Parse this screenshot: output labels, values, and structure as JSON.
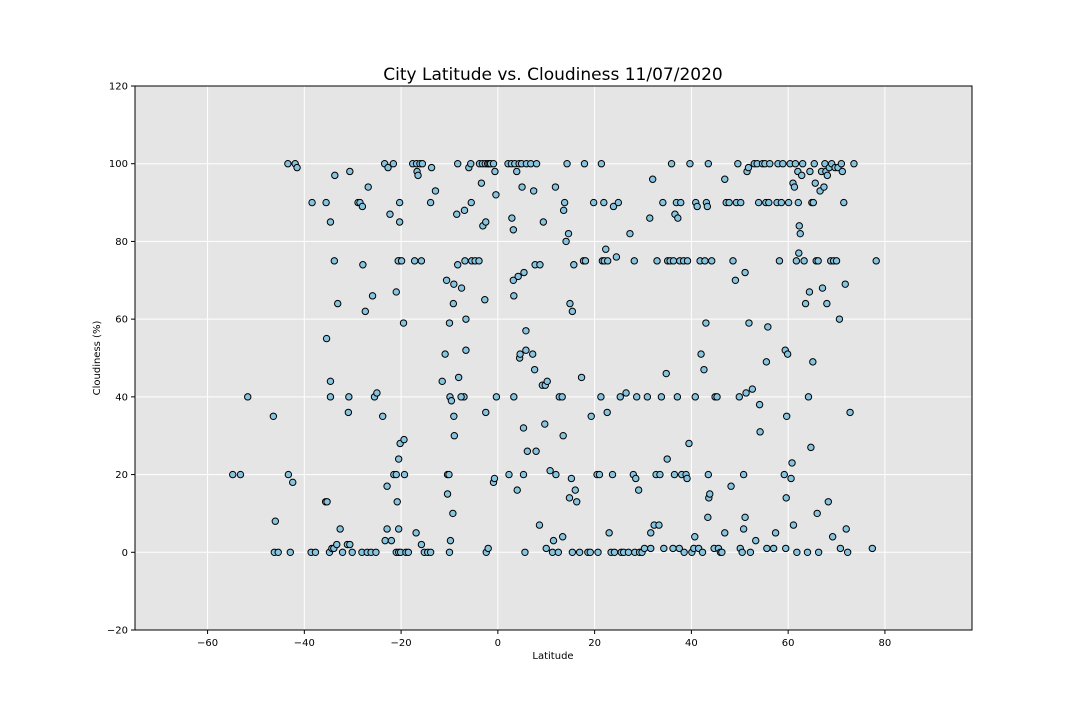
{
  "chart_data": {
    "type": "scatter",
    "title": "City Latitude vs. Cloudiness 11/07/2020",
    "xlabel": "Latitude",
    "ylabel": "Cloudiness (%)",
    "xlim": [
      -75,
      98
    ],
    "ylim": [
      -20,
      120
    ],
    "xticks": [
      -60,
      -40,
      -20,
      0,
      20,
      40,
      60,
      80
    ],
    "yticks": [
      -20,
      0,
      20,
      40,
      60,
      80,
      100,
      120
    ],
    "grid": true,
    "colors": {
      "marker_fill": "#87c4e0",
      "marker_edge": "#000000",
      "plot_background": "#e5e5e5",
      "grid": "#ffffff"
    },
    "points": [
      [
        -54.8,
        20
      ],
      [
        -53.2,
        20
      ],
      [
        -51.7,
        40
      ],
      [
        -46.4,
        35
      ],
      [
        -46.0,
        8
      ],
      [
        -46.2,
        0
      ],
      [
        -45.4,
        0
      ],
      [
        -43.4,
        100
      ],
      [
        -41.9,
        100
      ],
      [
        -41.5,
        99
      ],
      [
        -43.3,
        20
      ],
      [
        -42.4,
        18
      ],
      [
        -42.9,
        0
      ],
      [
        -38.4,
        90
      ],
      [
        -38.6,
        0
      ],
      [
        -37.7,
        0
      ],
      [
        -35.5,
        90
      ],
      [
        -34.6,
        85
      ],
      [
        -33.8,
        75
      ],
      [
        -33.7,
        97
      ],
      [
        -33.1,
        64
      ],
      [
        -35.4,
        55
      ],
      [
        -34.6,
        44
      ],
      [
        -34.6,
        40
      ],
      [
        -35.6,
        13
      ],
      [
        -35.3,
        13
      ],
      [
        -34.8,
        0
      ],
      [
        -34.3,
        1
      ],
      [
        -33.9,
        1
      ],
      [
        -33.3,
        2
      ],
      [
        -32.6,
        6
      ],
      [
        -32.1,
        0
      ],
      [
        -30.6,
        98
      ],
      [
        -30.8,
        40
      ],
      [
        -30.9,
        36
      ],
      [
        -31.1,
        2
      ],
      [
        -30.6,
        2
      ],
      [
        -30.1,
        0
      ],
      [
        -28.9,
        90
      ],
      [
        -28.5,
        90
      ],
      [
        -28.0,
        89
      ],
      [
        -27.9,
        74
      ],
      [
        -27.4,
        62
      ],
      [
        -26.8,
        94
      ],
      [
        -25.9,
        66
      ],
      [
        -25.5,
        40
      ],
      [
        -25.0,
        41
      ],
      [
        -28.1,
        0
      ],
      [
        -27.0,
        0
      ],
      [
        -26.2,
        0
      ],
      [
        -25.2,
        0
      ],
      [
        -23.4,
        100
      ],
      [
        -22.7,
        99
      ],
      [
        -21.6,
        100
      ],
      [
        -22.3,
        87
      ],
      [
        -21.0,
        67
      ],
      [
        -23.8,
        35
      ],
      [
        -22.9,
        17
      ],
      [
        -23.3,
        3
      ],
      [
        -22.0,
        3
      ],
      [
        -22.9,
        6
      ],
      [
        -21.5,
        20
      ],
      [
        -21.0,
        20
      ],
      [
        -21.0,
        0
      ],
      [
        -20.5,
        0
      ],
      [
        -20.1,
        0
      ],
      [
        -20.3,
        85
      ],
      [
        -20.3,
        90
      ],
      [
        -20.3,
        75
      ],
      [
        -20.6,
        75
      ],
      [
        -19.9,
        75
      ],
      [
        -19.5,
        59
      ],
      [
        -20.2,
        28
      ],
      [
        -19.4,
        29
      ],
      [
        -20.5,
        24
      ],
      [
        -20.8,
        13
      ],
      [
        -20.5,
        6
      ],
      [
        -19.3,
        20
      ],
      [
        -19.0,
        0
      ],
      [
        -18.5,
        0
      ],
      [
        -17.6,
        100
      ],
      [
        -16.8,
        100
      ],
      [
        -16.1,
        100
      ],
      [
        -15.6,
        100
      ],
      [
        -16.7,
        98
      ],
      [
        -16.5,
        97
      ],
      [
        -17.2,
        75
      ],
      [
        -15.8,
        75
      ],
      [
        -16.9,
        5
      ],
      [
        -15.8,
        2
      ],
      [
        -15.2,
        0
      ],
      [
        -14.5,
        0
      ],
      [
        -13.9,
        0
      ],
      [
        -13.9,
        90
      ],
      [
        -13.7,
        99
      ],
      [
        -12.9,
        93
      ],
      [
        -11.5,
        44
      ],
      [
        -10.6,
        70
      ],
      [
        -10.4,
        20
      ],
      [
        -10.1,
        20
      ],
      [
        -10.0,
        59
      ],
      [
        -10.9,
        51
      ],
      [
        -9.9,
        40
      ],
      [
        -9.6,
        39
      ],
      [
        -10.4,
        15
      ],
      [
        -9.8,
        3
      ],
      [
        -9.3,
        10
      ],
      [
        -10.0,
        0
      ],
      [
        -9.2,
        64
      ],
      [
        -9.1,
        69
      ],
      [
        -9.1,
        35
      ],
      [
        -9.0,
        30
      ],
      [
        -8.3,
        100
      ],
      [
        -8.5,
        87
      ],
      [
        -8.3,
        74
      ],
      [
        -8.1,
        45
      ],
      [
        -7.5,
        68
      ],
      [
        -7.0,
        40
      ],
      [
        -7.6,
        40
      ],
      [
        -6.9,
        88
      ],
      [
        -6.8,
        75
      ],
      [
        -6.6,
        60
      ],
      [
        -6.6,
        52
      ],
      [
        -6.0,
        99
      ],
      [
        -5.6,
        100
      ],
      [
        -5.5,
        90
      ],
      [
        -5.4,
        75
      ],
      [
        -4.7,
        75
      ],
      [
        -3.9,
        75
      ],
      [
        -3.8,
        100
      ],
      [
        -3.2,
        100
      ],
      [
        -2.6,
        100
      ],
      [
        -2.1,
        100
      ],
      [
        -1.8,
        100
      ],
      [
        -1.5,
        100
      ],
      [
        -3.4,
        95
      ],
      [
        -3.1,
        84
      ],
      [
        -2.5,
        85
      ],
      [
        -2.7,
        65
      ],
      [
        -2.5,
        36
      ],
      [
        -2.4,
        0
      ],
      [
        -2.0,
        1
      ],
      [
        -0.9,
        100
      ],
      [
        -0.6,
        98
      ],
      [
        -0.4,
        92
      ],
      [
        -0.9,
        18
      ],
      [
        -0.7,
        19
      ],
      [
        -0.3,
        40
      ],
      [
        2.1,
        100
      ],
      [
        2.8,
        100
      ],
      [
        3.5,
        100
      ],
      [
        4.4,
        100
      ],
      [
        4.9,
        100
      ],
      [
        5.9,
        100
      ],
      [
        6.8,
        100
      ],
      [
        8.0,
        100
      ],
      [
        2.9,
        86
      ],
      [
        3.2,
        83
      ],
      [
        3.9,
        98
      ],
      [
        3.2,
        70
      ],
      [
        4.2,
        71
      ],
      [
        5.4,
        72
      ],
      [
        2.3,
        20
      ],
      [
        3.3,
        66
      ],
      [
        3.3,
        40
      ],
      [
        4.0,
        16
      ],
      [
        4.5,
        50
      ],
      [
        4.6,
        51
      ],
      [
        5.0,
        94
      ],
      [
        5.3,
        32
      ],
      [
        5.8,
        52
      ],
      [
        5.8,
        57
      ],
      [
        6.1,
        26
      ],
      [
        5.3,
        20
      ],
      [
        5.6,
        0
      ],
      [
        7.4,
        93
      ],
      [
        7.7,
        74
      ],
      [
        7.2,
        51
      ],
      [
        7.6,
        47
      ],
      [
        7.9,
        26
      ],
      [
        8.6,
        7
      ],
      [
        8.7,
        74
      ],
      [
        9.2,
        43
      ],
      [
        9.8,
        43
      ],
      [
        9.4,
        85
      ],
      [
        9.7,
        33
      ],
      [
        10.2,
        44
      ],
      [
        10.0,
        1
      ],
      [
        10.8,
        21
      ],
      [
        11.3,
        0
      ],
      [
        12.0,
        20
      ],
      [
        11.5,
        3
      ],
      [
        11.9,
        94
      ],
      [
        12.5,
        0
      ],
      [
        12.7,
        40
      ],
      [
        13.3,
        40
      ],
      [
        13.4,
        4
      ],
      [
        13.5,
        30
      ],
      [
        13.6,
        88
      ],
      [
        13.8,
        90
      ],
      [
        14.1,
        80
      ],
      [
        14.3,
        100
      ],
      [
        14.6,
        82
      ],
      [
        14.8,
        14
      ],
      [
        14.9,
        64
      ],
      [
        15.2,
        19
      ],
      [
        15.4,
        0
      ],
      [
        15.4,
        62
      ],
      [
        15.7,
        74
      ],
      [
        16.0,
        16
      ],
      [
        16.3,
        13
      ],
      [
        16.9,
        0
      ],
      [
        17.3,
        45
      ],
      [
        17.7,
        75
      ],
      [
        17.9,
        100
      ],
      [
        18.1,
        75
      ],
      [
        18.6,
        0
      ],
      [
        19.1,
        0
      ],
      [
        19.3,
        35
      ],
      [
        19.8,
        90
      ],
      [
        20.5,
        20
      ],
      [
        20.7,
        0
      ],
      [
        21.0,
        20
      ],
      [
        21.3,
        40
      ],
      [
        21.4,
        100
      ],
      [
        21.6,
        75
      ],
      [
        21.9,
        90
      ],
      [
        22.0,
        75
      ],
      [
        22.3,
        78
      ],
      [
        22.6,
        36
      ],
      [
        22.7,
        75
      ],
      [
        23.0,
        5
      ],
      [
        23.4,
        0
      ],
      [
        23.7,
        20
      ],
      [
        23.9,
        89
      ],
      [
        24.1,
        0
      ],
      [
        24.5,
        76
      ],
      [
        24.9,
        90
      ],
      [
        25.3,
        40
      ],
      [
        25.5,
        0
      ],
      [
        26.5,
        41
      ],
      [
        26.0,
        0
      ],
      [
        27.0,
        0
      ],
      [
        27.3,
        82
      ],
      [
        28.0,
        20
      ],
      [
        28.5,
        19
      ],
      [
        28.2,
        75
      ],
      [
        28.7,
        40
      ],
      [
        29.1,
        16
      ],
      [
        28.3,
        0
      ],
      [
        29.3,
        0
      ],
      [
        29.8,
        0
      ],
      [
        30.3,
        1
      ],
      [
        30.9,
        40
      ],
      [
        31.4,
        86
      ],
      [
        31.6,
        5
      ],
      [
        31.6,
        1
      ],
      [
        32.0,
        96
      ],
      [
        32.3,
        7
      ],
      [
        32.7,
        20
      ],
      [
        32.9,
        75
      ],
      [
        33.3,
        7
      ],
      [
        33.5,
        20
      ],
      [
        33.8,
        40
      ],
      [
        34.1,
        90
      ],
      [
        34.3,
        1
      ],
      [
        34.8,
        46
      ],
      [
        35.0,
        24
      ],
      [
        35.1,
        75
      ],
      [
        35.6,
        75
      ],
      [
        35.9,
        100
      ],
      [
        36.2,
        1
      ],
      [
        36.3,
        75
      ],
      [
        36.5,
        20
      ],
      [
        36.6,
        87
      ],
      [
        36.9,
        90
      ],
      [
        37.1,
        40
      ],
      [
        37.2,
        86
      ],
      [
        37.5,
        1
      ],
      [
        37.6,
        75
      ],
      [
        37.8,
        90
      ],
      [
        38.0,
        20
      ],
      [
        38.4,
        75
      ],
      [
        38.5,
        0
      ],
      [
        38.9,
        20
      ],
      [
        39.1,
        19
      ],
      [
        39.2,
        75
      ],
      [
        39.5,
        28
      ],
      [
        39.7,
        100
      ],
      [
        40.1,
        0
      ],
      [
        40.5,
        1
      ],
      [
        40.7,
        4
      ],
      [
        40.8,
        40
      ],
      [
        40.9,
        90
      ],
      [
        41.2,
        89
      ],
      [
        41.5,
        1
      ],
      [
        41.8,
        75
      ],
      [
        42.0,
        51
      ],
      [
        42.3,
        0
      ],
      [
        42.6,
        47
      ],
      [
        42.8,
        75
      ],
      [
        43.0,
        59
      ],
      [
        43.1,
        90
      ],
      [
        43.3,
        89
      ],
      [
        43.4,
        9
      ],
      [
        43.5,
        20
      ],
      [
        43.5,
        100
      ],
      [
        43.6,
        14
      ],
      [
        43.8,
        15
      ],
      [
        44.2,
        75
      ],
      [
        44.7,
        1
      ],
      [
        44.9,
        40
      ],
      [
        45.3,
        40
      ],
      [
        45.6,
        1
      ],
      [
        46.0,
        0
      ],
      [
        46.3,
        0
      ],
      [
        46.9,
        5
      ],
      [
        46.9,
        96
      ],
      [
        47.2,
        90
      ],
      [
        47.8,
        90
      ],
      [
        48.2,
        17
      ],
      [
        48.6,
        75
      ],
      [
        49.1,
        70
      ],
      [
        49.3,
        90
      ],
      [
        49.6,
        100
      ],
      [
        49.9,
        40
      ],
      [
        50.1,
        1
      ],
      [
        50.2,
        90
      ],
      [
        50.5,
        0
      ],
      [
        50.8,
        20
      ],
      [
        50.8,
        6
      ],
      [
        51.1,
        9
      ],
      [
        51.1,
        72
      ],
      [
        51.3,
        41
      ],
      [
        51.5,
        98
      ],
      [
        51.8,
        99
      ],
      [
        51.9,
        59
      ],
      [
        52.2,
        0
      ],
      [
        52.6,
        42
      ],
      [
        53.0,
        100
      ],
      [
        53.3,
        3
      ],
      [
        53.6,
        100
      ],
      [
        53.9,
        90
      ],
      [
        54.1,
        38
      ],
      [
        54.2,
        31
      ],
      [
        54.7,
        100
      ],
      [
        55.2,
        100
      ],
      [
        55.4,
        90
      ],
      [
        55.5,
        49
      ],
      [
        55.6,
        1
      ],
      [
        55.8,
        58
      ],
      [
        56.0,
        90
      ],
      [
        56.2,
        100
      ],
      [
        57.0,
        1
      ],
      [
        57.4,
        5
      ],
      [
        57.7,
        90
      ],
      [
        57.9,
        100
      ],
      [
        58.2,
        75
      ],
      [
        58.6,
        90
      ],
      [
        58.9,
        100
      ],
      [
        59.2,
        20
      ],
      [
        59.4,
        52
      ],
      [
        59.5,
        1
      ],
      [
        59.6,
        14
      ],
      [
        59.7,
        35
      ],
      [
        59.9,
        51
      ],
      [
        60.1,
        90
      ],
      [
        60.4,
        100
      ],
      [
        60.6,
        19
      ],
      [
        60.8,
        23
      ],
      [
        61.0,
        95
      ],
      [
        61.1,
        7
      ],
      [
        61.3,
        94
      ],
      [
        61.5,
        100
      ],
      [
        61.7,
        75
      ],
      [
        61.8,
        0
      ],
      [
        62.0,
        98
      ],
      [
        62.1,
        90
      ],
      [
        62.2,
        77
      ],
      [
        62.3,
        84
      ],
      [
        62.5,
        82
      ],
      [
        62.8,
        97
      ],
      [
        63.0,
        100
      ],
      [
        63.3,
        75
      ],
      [
        63.6,
        64
      ],
      [
        64.0,
        0
      ],
      [
        64.2,
        40
      ],
      [
        64.4,
        67
      ],
      [
        64.5,
        98
      ],
      [
        64.7,
        27
      ],
      [
        64.9,
        90
      ],
      [
        65.1,
        49
      ],
      [
        65.2,
        90
      ],
      [
        65.4,
        100
      ],
      [
        65.6,
        95
      ],
      [
        65.8,
        75
      ],
      [
        66.0,
        10
      ],
      [
        66.2,
        75
      ],
      [
        66.3,
        0
      ],
      [
        66.6,
        93
      ],
      [
        66.9,
        98
      ],
      [
        67.1,
        68
      ],
      [
        67.4,
        94
      ],
      [
        67.6,
        100
      ],
      [
        67.8,
        98
      ],
      [
        68.0,
        64
      ],
      [
        68.1,
        97
      ],
      [
        68.3,
        13
      ],
      [
        68.5,
        99
      ],
      [
        68.8,
        75
      ],
      [
        69.0,
        100
      ],
      [
        69.2,
        4
      ],
      [
        69.4,
        75
      ],
      [
        69.7,
        99
      ],
      [
        70.0,
        75
      ],
      [
        70.3,
        99
      ],
      [
        70.6,
        60
      ],
      [
        70.8,
        1
      ],
      [
        71.0,
        100
      ],
      [
        71.2,
        98
      ],
      [
        71.5,
        90
      ],
      [
        71.8,
        69
      ],
      [
        72.0,
        6
      ],
      [
        72.3,
        0
      ],
      [
        72.8,
        36
      ],
      [
        73.6,
        100
      ],
      [
        77.4,
        1
      ],
      [
        78.2,
        75
      ]
    ]
  }
}
